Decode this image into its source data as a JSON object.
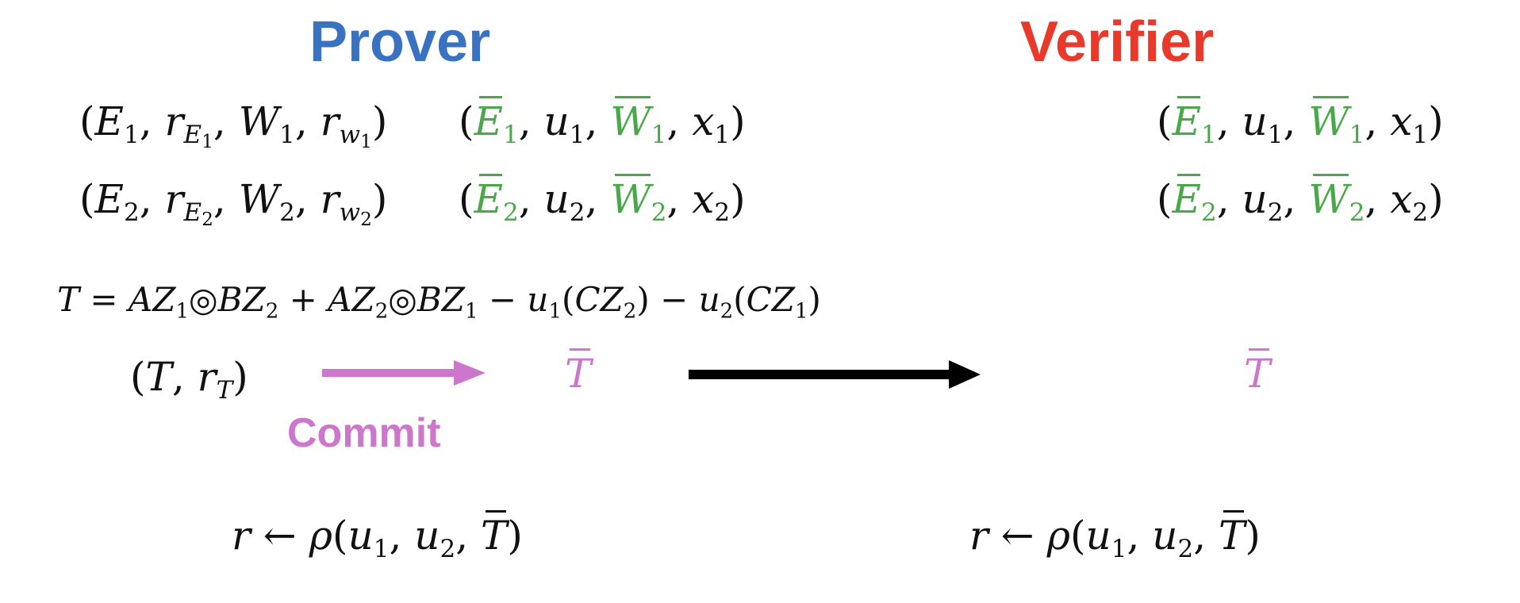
{
  "headings": {
    "prover": "Prover",
    "verifier": "Verifier"
  },
  "commit_label": "Commit",
  "colors": {
    "prover": "#3a72c2",
    "verifier": "#e8392b",
    "committed": "#4aa84a",
    "commit": "#cc77cc",
    "arrow": "#000000"
  },
  "symbols": {
    "E": "E",
    "W": "W",
    "r": "r",
    "u": "u",
    "x": "x",
    "T": "T",
    "one": "1",
    "two": "2",
    "w": "w"
  }
}
